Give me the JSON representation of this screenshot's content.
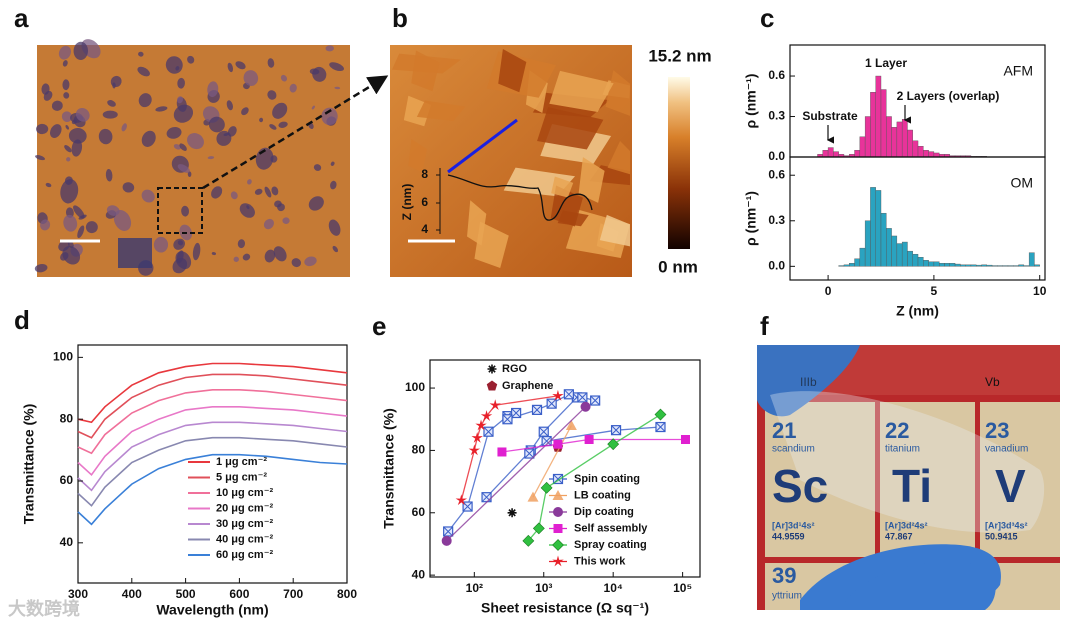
{
  "panel_labels": [
    "a",
    "b",
    "c",
    "d",
    "e",
    "f"
  ],
  "panel_b": {
    "colorbar_max": "15.2 nm",
    "colorbar_min": "0 nm",
    "inset_axis_label": "Z (nm)",
    "inset_ticks": [
      "8",
      "6",
      "4"
    ]
  },
  "panel_f": {
    "group_labels": [
      "IIIb",
      "Vb"
    ],
    "cells": [
      {
        "number": "21",
        "name": "scandium",
        "symbol": "Sc",
        "config": "[Ar]3d¹4s²",
        "mass": "44.9559"
      },
      {
        "number": "22",
        "name": "titanium",
        "symbol": "Ti",
        "config": "[Ar]3d²4s²",
        "mass": "47.867"
      },
      {
        "number": "23",
        "name": "vanadium",
        "symbol": "V",
        "config": "[Ar]3d³4s²",
        "mass": "50.9415"
      },
      {
        "number": "39",
        "name": "yttrium"
      }
    ]
  },
  "watermark": "大数跨境",
  "chart_data": [
    {
      "type": "histogram",
      "label": "AFM",
      "ylabel": "ρ (nm⁻¹)",
      "color": "#e8339a",
      "annotations": [
        "Substrate",
        "1 Layer",
        "2 Layers (overlap)"
      ],
      "bins": [
        -0.5,
        -0.25,
        0,
        0.25,
        0.5,
        0.75,
        1,
        1.25,
        1.5,
        1.75,
        2,
        2.25,
        2.5,
        2.75,
        3,
        3.25,
        3.5,
        3.75,
        4,
        4.25,
        4.5,
        4.75,
        5,
        5.25,
        5.5,
        5.75,
        6,
        6.25,
        6.5,
        6.75,
        7,
        7.25,
        7.5,
        7.75,
        8,
        8.25,
        8.5,
        8.75,
        9,
        9.25,
        9.5,
        9.75,
        10
      ],
      "values": [
        0.02,
        0.05,
        0.07,
        0.04,
        0.02,
        0.01,
        0.02,
        0.05,
        0.15,
        0.3,
        0.48,
        0.6,
        0.5,
        0.3,
        0.22,
        0.26,
        0.28,
        0.2,
        0.12,
        0.08,
        0.05,
        0.04,
        0.03,
        0.02,
        0.02,
        0.01,
        0.01,
        0.01,
        0.01,
        0.005,
        0.005,
        0.005,
        0,
        0,
        0,
        0,
        0,
        0,
        0,
        0,
        0,
        0
      ],
      "xlim": [
        -1.8,
        10.25
      ],
      "ylim": [
        0,
        0.83
      ],
      "yticks": [
        {
          "value": 0,
          "label": "0.0"
        },
        0.3,
        0.6
      ]
    },
    {
      "type": "histogram",
      "label": "OM",
      "ylabel": "ρ (nm⁻¹)",
      "xlabel": "Z (nm)",
      "color": "#2aa3c0",
      "bins": [
        -0.5,
        -0.25,
        0,
        0.25,
        0.5,
        0.75,
        1,
        1.25,
        1.5,
        1.75,
        2,
        2.25,
        2.5,
        2.75,
        3,
        3.25,
        3.5,
        3.75,
        4,
        4.25,
        4.5,
        4.75,
        5,
        5.25,
        5.5,
        5.75,
        6,
        6.25,
        6.5,
        6.75,
        7,
        7.25,
        7.5,
        7.75,
        8,
        8.25,
        8.5,
        8.75,
        9,
        9.25,
        9.5,
        9.75,
        10
      ],
      "values": [
        0,
        0,
        0,
        0,
        0.005,
        0.01,
        0.02,
        0.05,
        0.12,
        0.3,
        0.52,
        0.5,
        0.35,
        0.25,
        0.2,
        0.15,
        0.16,
        0.1,
        0.08,
        0.06,
        0.04,
        0.03,
        0.03,
        0.02,
        0.02,
        0.02,
        0.015,
        0.01,
        0.01,
        0.01,
        0.008,
        0.01,
        0.008,
        0.005,
        0.005,
        0.005,
        0.005,
        0.005,
        0.01,
        0.005,
        0.09,
        0.01
      ],
      "xlim": [
        -1.8,
        10.25
      ],
      "ylim": [
        -0.09,
        0.72
      ],
      "xticks": [
        0,
        5,
        10
      ],
      "yticks": [
        {
          "value": 0,
          "label": "0.0"
        },
        0.3,
        0.6
      ]
    },
    {
      "type": "line",
      "xlabel": "Wavelength (nm)",
      "ylabel": "Transmittance (%)",
      "x": [
        300,
        325,
        350,
        400,
        450,
        500,
        550,
        600,
        650,
        700,
        750,
        800
      ],
      "xlim": [
        300,
        800
      ],
      "ylim": [
        27,
        104
      ],
      "xticks": [
        300,
        400,
        500,
        600,
        700,
        800
      ],
      "yticks": [
        40,
        60,
        80,
        100
      ],
      "series": [
        {
          "name": "1 μg cm⁻²",
          "color": "#e8383d",
          "values": [
            80,
            79,
            84,
            91,
            95,
            97,
            98,
            98,
            97.5,
            97,
            96,
            95
          ]
        },
        {
          "name": "5 μg cm⁻²",
          "color": "#e0505a",
          "values": [
            76,
            74,
            80,
            87,
            91,
            93.5,
            94.5,
            94.5,
            94,
            93,
            92,
            91
          ]
        },
        {
          "name": "10 μg cm⁻²",
          "color": "#f0709a",
          "values": [
            71,
            69,
            75,
            82,
            86,
            88.5,
            89.5,
            89.5,
            89,
            88,
            87,
            86
          ]
        },
        {
          "name": "20 μg cm⁻²",
          "color": "#e878c8",
          "values": [
            66,
            62,
            68,
            76,
            80,
            83,
            84,
            84,
            83.5,
            83,
            82,
            81
          ]
        },
        {
          "name": "30 μg cm⁻²",
          "color": "#b888d0",
          "values": [
            61,
            57,
            63,
            71,
            75,
            78,
            79,
            79,
            78.5,
            78,
            77,
            76
          ]
        },
        {
          "name": "40 μg cm⁻²",
          "color": "#8888b0",
          "values": [
            56,
            52,
            58,
            66,
            70,
            73,
            74,
            74,
            73.5,
            73,
            72,
            71
          ]
        },
        {
          "name": "60 μg cm⁻²",
          "color": "#3a80d8",
          "values": [
            50,
            46,
            51,
            59,
            64,
            67,
            68.5,
            68.5,
            68,
            67,
            66,
            65.5
          ]
        }
      ]
    },
    {
      "type": "scatter",
      "xscale": "log",
      "xlabel": "Sheet resistance  (Ω sq⁻¹)",
      "ylabel": "Transmittance (%)",
      "xlim": [
        23,
        178000
      ],
      "ylim": [
        39.4,
        109
      ],
      "xticks": [
        {
          "value": 100,
          "label": "10²"
        },
        {
          "value": 1000,
          "label": "10³"
        },
        {
          "value": 10000,
          "label": "10⁴"
        },
        {
          "value": 100000,
          "label": "10⁵"
        }
      ],
      "yticks": [
        40,
        60,
        80,
        100
      ],
      "series": [
        {
          "name": "RGO",
          "color": "#111111",
          "marker": "asterisk",
          "line": false,
          "x": [
            350
          ],
          "values": [
            60
          ]
        },
        {
          "name": "Graphene",
          "color": "#9a2030",
          "marker": "pentagon",
          "line": false,
          "x": [
            1600
          ],
          "values": [
            81
          ]
        },
        {
          "name": "Spin coating",
          "color": "#3a5fc8",
          "marker": "square-x",
          "line": true,
          "x": [
            42,
            80,
            160,
            300,
            400,
            null,
            150,
            650,
            1000,
            3000,
            null,
            300,
            800,
            1300,
            2300,
            3600,
            5500,
            null,
            620,
            1100,
            11000,
            48000
          ],
          "values": [
            54,
            62,
            86,
            91,
            92,
            null,
            65,
            80,
            86,
            97,
            null,
            90,
            93,
            95,
            98,
            97,
            96,
            null,
            79,
            83,
            86.5,
            87.5
          ]
        },
        {
          "name": "LB coating",
          "color": "#f0a060",
          "marker": "triangle",
          "line": true,
          "x": [
            700,
            2500
          ],
          "values": [
            65,
            88
          ]
        },
        {
          "name": "Dip coating",
          "color": "#8a3a9a",
          "marker": "circle",
          "line": true,
          "x": [
            40,
            4000
          ],
          "values": [
            51,
            94
          ]
        },
        {
          "name": "Self assembly",
          "color": "#e020d0",
          "marker": "square",
          "line": true,
          "x": [
            250,
            1600,
            4500,
            110000
          ],
          "values": [
            79.5,
            82,
            83.5,
            83.5
          ]
        },
        {
          "name": "Spray coating",
          "color": "#30c040",
          "marker": "diamond",
          "line": true,
          "x": [
            600,
            850,
            1100,
            10000,
            48000
          ],
          "values": [
            51,
            55,
            68,
            82,
            91.5
          ]
        },
        {
          "name": "This work",
          "color": "#e8202a",
          "marker": "star",
          "line": true,
          "x": [
            65,
            100,
            110,
            125,
            150,
            200,
            1600
          ],
          "values": [
            64,
            80,
            84,
            88,
            91,
            94.5,
            97.5
          ]
        }
      ]
    }
  ]
}
